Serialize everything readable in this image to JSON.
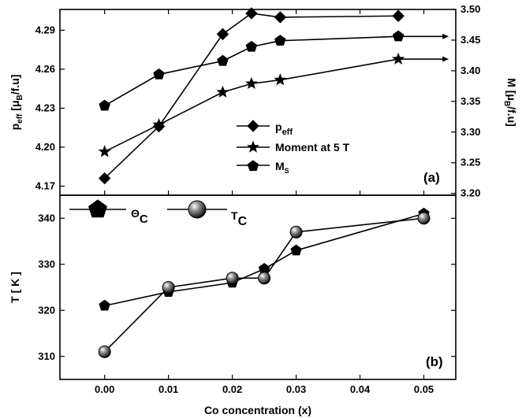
{
  "chart_data": [
    {
      "type": "line",
      "panel_label": "(a)",
      "xlim": [
        -0.007,
        0.055
      ],
      "x_ticks": [
        0.0,
        0.01,
        0.02,
        0.03,
        0.04,
        0.05
      ],
      "ylabel": "p_eff [μ_B/f.u]",
      "ylabel_parts": {
        "p": "p",
        "p_sub": "eff",
        "open": " [μ",
        "mu_sub": "B",
        "close": "/f.u]"
      },
      "ylim": [
        4.163,
        4.306
      ],
      "y_ticks": [
        "4.17",
        "4.20",
        "4.23",
        "4.26",
        "4.29"
      ],
      "y2label": "M [μ_B/f.u]",
      "y2label_parts": {
        "open": "M [μ",
        "mu_sub": "B",
        "close": "/f.u]"
      },
      "y2lim": [
        3.197,
        3.5
      ],
      "y2_ticks": [
        "3.20",
        "3.25",
        "3.30",
        "3.35",
        "3.40",
        "3.45",
        "3.50"
      ],
      "legend_position": "center-right",
      "series": [
        {
          "name": "p_eff",
          "legend_main": "p",
          "legend_sub": "eff",
          "marker": "diamond",
          "axis": "left",
          "x": [
            0.0,
            0.0085,
            0.0185,
            0.023,
            0.0275,
            0.046
          ],
          "y": [
            4.176,
            4.216,
            4.287,
            4.303,
            4.3,
            4.301
          ]
        },
        {
          "name": "Moment at 5 T",
          "legend_main": "Moment at 5 T",
          "legend_sub": "",
          "marker": "star",
          "axis": "right",
          "arrow": "right",
          "x": [
            0.0,
            0.0085,
            0.0185,
            0.023,
            0.0275,
            0.046
          ],
          "y": [
            3.268,
            3.312,
            3.365,
            3.379,
            3.385,
            3.419
          ]
        },
        {
          "name": "M_S",
          "legend_main": "M",
          "legend_sub": "S",
          "marker": "pentagon",
          "axis": "right",
          "arrow": "right",
          "x": [
            0.0,
            0.0085,
            0.0185,
            0.023,
            0.0275,
            0.046
          ],
          "y": [
            3.343,
            3.394,
            3.416,
            3.439,
            3.449,
            3.456
          ]
        }
      ]
    },
    {
      "type": "line",
      "panel_label": "(b)",
      "xlabel": "Co concentration (x)",
      "xlim": [
        -0.007,
        0.055
      ],
      "x_ticks": [
        "0.00",
        "0.01",
        "0.02",
        "0.03",
        "0.04",
        "0.05"
      ],
      "ylabel": "T [ K ]",
      "ylim": [
        305,
        345
      ],
      "y_ticks": [
        "310",
        "320",
        "330",
        "340"
      ],
      "legend_position": "top-left",
      "series": [
        {
          "name": "Θ_C",
          "legend_main": "Θ",
          "legend_sub": "C",
          "marker": "pentagon",
          "x": [
            0.0,
            0.01,
            0.02,
            0.025,
            0.03,
            0.05
          ],
          "y": [
            321,
            324,
            326,
            329,
            333,
            341
          ]
        },
        {
          "name": "T_C",
          "legend_main": "T",
          "legend_sub": "C",
          "marker": "sphere",
          "x": [
            0.0,
            0.01,
            0.02,
            0.025,
            0.03,
            0.05
          ],
          "y": [
            311,
            325,
            327,
            327,
            337,
            340
          ]
        }
      ]
    }
  ]
}
